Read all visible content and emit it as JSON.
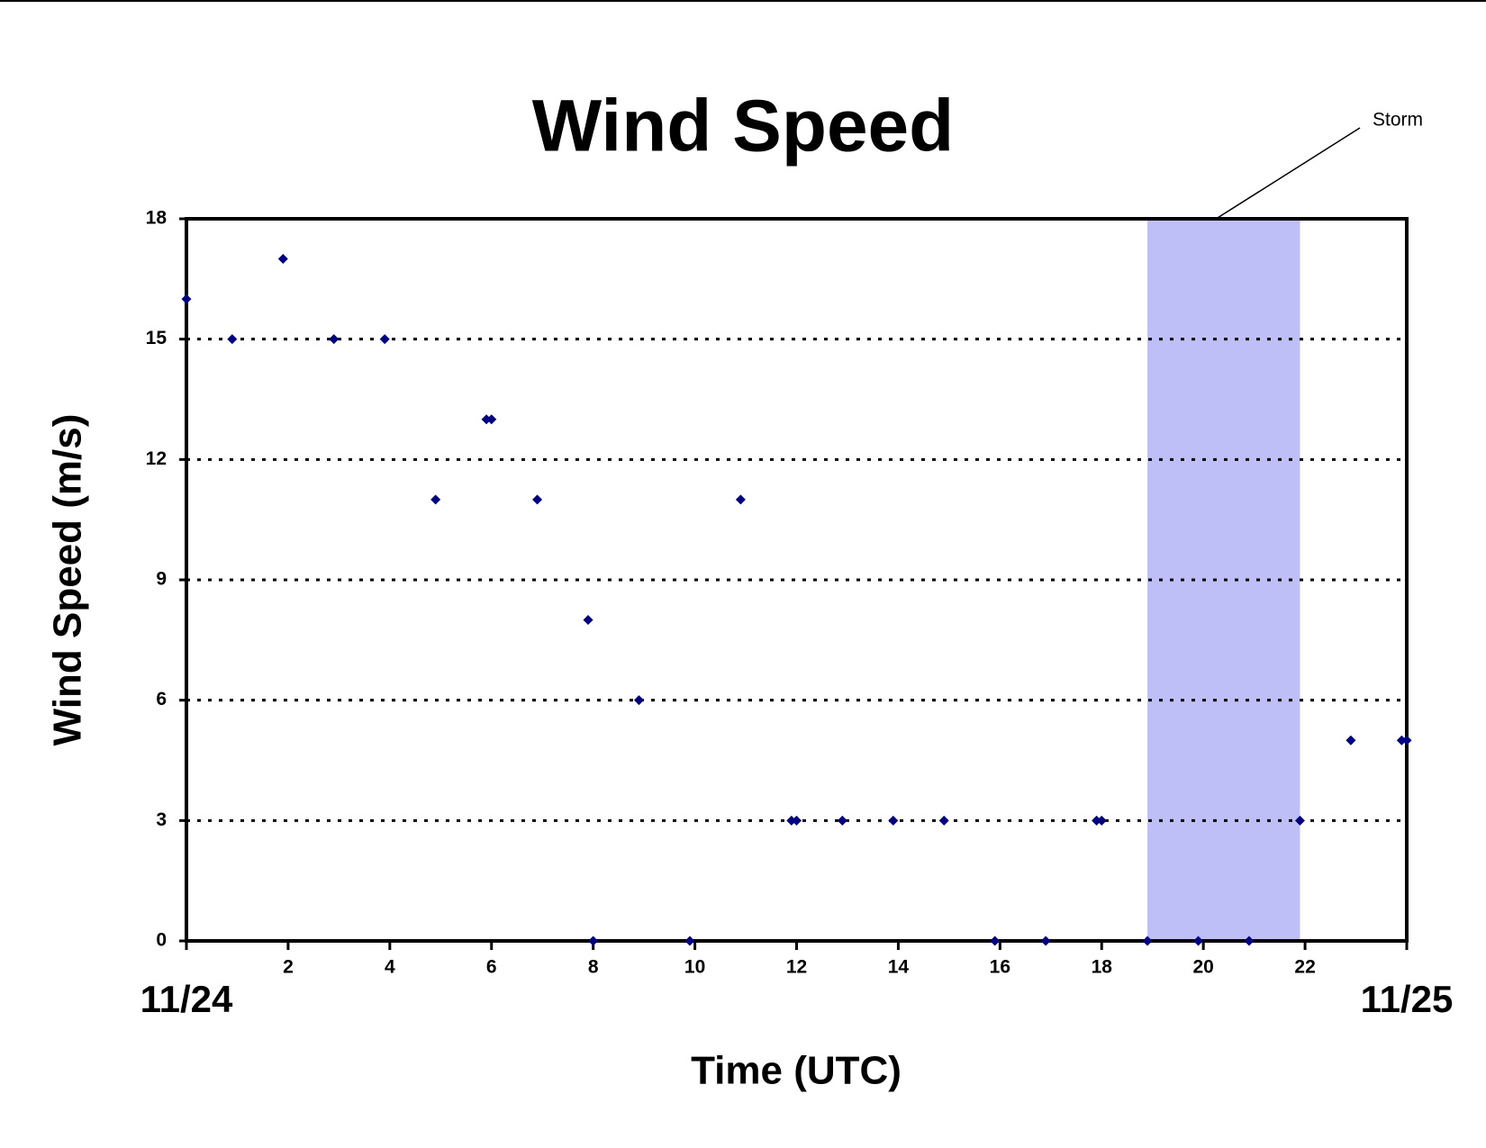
{
  "chart_data": {
    "type": "scatter",
    "title": "Wind Speed",
    "x_label": "Time (UTC)",
    "y_label": "Wind Speed (m/s)",
    "x": [
      0,
      0.9,
      1.9,
      2.9,
      3.9,
      4.9,
      5.9,
      6.0,
      6.9,
      7.9,
      8.0,
      8.9,
      9.9,
      10.9,
      11.9,
      12.0,
      12.9,
      13.9,
      14.9,
      15.9,
      16.9,
      17.9,
      18.0,
      18.9,
      19.9,
      20.9,
      21.9,
      22.9,
      23.9,
      24
    ],
    "y": [
      16,
      15,
      17,
      15,
      15,
      11,
      13,
      13,
      11,
      8,
      0,
      6,
      0,
      11,
      3,
      3,
      3,
      3,
      3,
      0,
      0,
      3,
      3,
      0,
      0,
      0,
      3,
      5,
      5,
      5
    ],
    "color": "#000080",
    "xlim": [
      0,
      24
    ],
    "xticks": [
      {
        "value": 0,
        "label": "11/24"
      },
      2,
      4,
      6,
      8,
      10,
      12,
      14,
      16,
      18,
      20,
      22,
      {
        "value": 24,
        "label": "11/25"
      }
    ],
    "ylim": [
      0,
      18
    ],
    "yticks": [
      0,
      3,
      6,
      9,
      12,
      15,
      18
    ],
    "grid": true,
    "annotation": {
      "text": "Storm",
      "x_range": [
        18.9,
        21.9
      ],
      "color": "#bfbff8"
    }
  }
}
